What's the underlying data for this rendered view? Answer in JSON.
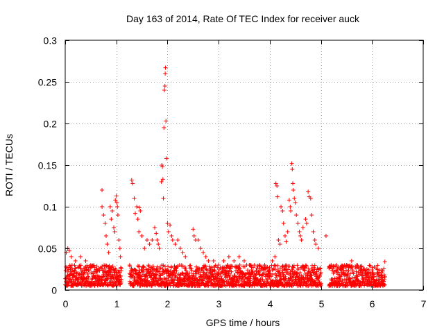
{
  "chart_data": {
    "type": "scatter",
    "title": "Day 163 of 2014, Rate Of TEC Index for receiver auck",
    "xlabel": "GPS time / hours",
    "ylabel": "ROTI / TECUs",
    "xlim": [
      0,
      7
    ],
    "ylim": [
      0,
      0.3
    ],
    "xticks": [
      0,
      1,
      2,
      3,
      4,
      5,
      6,
      7
    ],
    "yticks": [
      0,
      0.05,
      0.1,
      0.15,
      0.2,
      0.25,
      0.3
    ],
    "xtick_labels": [
      "0",
      "1",
      "2",
      "3",
      "4",
      "5",
      "6",
      "7"
    ],
    "ytick_labels": [
      "0",
      "0.05",
      "0.1",
      "0.15",
      "0.2",
      "0.25",
      "0.3"
    ],
    "grid": true,
    "marker": "plus",
    "color": "#ff0000",
    "series": [
      {
        "name": "ROTI",
        "baseline_x_range": [
          0,
          6.25
        ],
        "baseline_gaps": [
          [
            1.1,
            1.25
          ],
          [
            5.0,
            5.15
          ]
        ],
        "baseline_y_range": [
          0.005,
          0.03
        ],
        "points": [
          [
            0.02,
            0.045
          ],
          [
            0.05,
            0.05
          ],
          [
            0.08,
            0.047
          ],
          [
            0.12,
            0.04
          ],
          [
            0.2,
            0.035
          ],
          [
            0.3,
            0.04
          ],
          [
            0.4,
            0.035
          ],
          [
            0.5,
            0.03
          ],
          [
            0.72,
            0.12
          ],
          [
            0.72,
            0.1
          ],
          [
            0.75,
            0.09
          ],
          [
            0.78,
            0.08
          ],
          [
            0.8,
            0.065
          ],
          [
            0.82,
            0.055
          ],
          [
            0.85,
            0.045
          ],
          [
            0.88,
            0.1
          ],
          [
            0.9,
            0.085
          ],
          [
            0.92,
            0.095
          ],
          [
            0.95,
            0.075
          ],
          [
            0.97,
            0.07
          ],
          [
            0.98,
            0.108
          ],
          [
            1.0,
            0.113
          ],
          [
            1.01,
            0.105
          ],
          [
            1.02,
            0.1
          ],
          [
            1.03,
            0.09
          ],
          [
            1.05,
            0.06
          ],
          [
            1.07,
            0.05
          ],
          [
            1.08,
            0.04
          ],
          [
            1.3,
            0.132
          ],
          [
            1.32,
            0.128
          ],
          [
            1.35,
            0.11
          ],
          [
            1.37,
            0.092
          ],
          [
            1.4,
            0.1
          ],
          [
            1.42,
            0.085
          ],
          [
            1.44,
            0.07
          ],
          [
            1.45,
            0.099
          ],
          [
            1.47,
            0.095
          ],
          [
            1.5,
            0.065
          ],
          [
            1.55,
            0.05
          ],
          [
            1.6,
            0.06
          ],
          [
            1.65,
            0.055
          ],
          [
            1.7,
            0.06
          ],
          [
            1.75,
            0.075
          ],
          [
            1.78,
            0.068
          ],
          [
            1.8,
            0.06
          ],
          [
            1.82,
            0.055
          ],
          [
            1.84,
            0.05
          ],
          [
            1.88,
            0.13
          ],
          [
            1.89,
            0.15
          ],
          [
            1.9,
            0.148
          ],
          [
            1.91,
            0.133
          ],
          [
            1.92,
            0.11
          ],
          [
            1.93,
            0.195
          ],
          [
            1.94,
            0.24
          ],
          [
            1.95,
            0.245
          ],
          [
            1.955,
            0.26
          ],
          [
            1.96,
            0.267
          ],
          [
            1.97,
            0.203
          ],
          [
            1.98,
            0.158
          ],
          [
            2.0,
            0.08
          ],
          [
            2.02,
            0.07
          ],
          [
            2.05,
            0.078
          ],
          [
            2.08,
            0.065
          ],
          [
            2.1,
            0.06
          ],
          [
            2.15,
            0.055
          ],
          [
            2.2,
            0.06
          ],
          [
            2.25,
            0.05
          ],
          [
            2.3,
            0.045
          ],
          [
            2.35,
            0.04
          ],
          [
            2.5,
            0.073
          ],
          [
            2.52,
            0.065
          ],
          [
            2.55,
            0.06
          ],
          [
            2.6,
            0.06
          ],
          [
            2.65,
            0.05
          ],
          [
            2.7,
            0.045
          ],
          [
            2.75,
            0.04
          ],
          [
            2.8,
            0.035
          ],
          [
            2.9,
            0.035
          ],
          [
            3.0,
            0.03
          ],
          [
            3.1,
            0.035
          ],
          [
            3.2,
            0.04
          ],
          [
            3.3,
            0.035
          ],
          [
            3.4,
            0.04
          ],
          [
            3.5,
            0.035
          ],
          [
            3.6,
            0.03
          ],
          [
            3.7,
            0.03
          ],
          [
            3.8,
            0.03
          ],
          [
            3.9,
            0.03
          ],
          [
            4.05,
            0.035
          ],
          [
            4.1,
            0.04
          ],
          [
            4.12,
            0.128
          ],
          [
            4.14,
            0.125
          ],
          [
            4.15,
            0.112
          ],
          [
            4.17,
            0.06
          ],
          [
            4.2,
            0.055
          ],
          [
            4.22,
            0.1
          ],
          [
            4.25,
            0.095
          ],
          [
            4.27,
            0.08
          ],
          [
            4.3,
            0.065
          ],
          [
            4.32,
            0.058
          ],
          [
            4.35,
            0.07
          ],
          [
            4.38,
            0.108
          ],
          [
            4.4,
            0.1
          ],
          [
            4.41,
            0.095
          ],
          [
            4.43,
            0.152
          ],
          [
            4.44,
            0.145
          ],
          [
            4.45,
            0.128
          ],
          [
            4.46,
            0.12
          ],
          [
            4.48,
            0.11
          ],
          [
            4.5,
            0.105
          ],
          [
            4.52,
            0.09
          ],
          [
            4.55,
            0.08
          ],
          [
            4.58,
            0.07
          ],
          [
            4.6,
            0.065
          ],
          [
            4.62,
            0.06
          ],
          [
            4.65,
            0.075
          ],
          [
            4.7,
            0.085
          ],
          [
            4.72,
            0.08
          ],
          [
            4.75,
            0.118
          ],
          [
            4.77,
            0.112
          ],
          [
            4.8,
            0.11
          ],
          [
            4.82,
            0.09
          ],
          [
            4.85,
            0.07
          ],
          [
            4.88,
            0.06
          ],
          [
            4.9,
            0.055
          ],
          [
            4.95,
            0.05
          ],
          [
            5.1,
            0.065
          ],
          [
            5.2,
            0.03
          ],
          [
            5.3,
            0.03
          ],
          [
            5.4,
            0.025
          ],
          [
            5.5,
            0.03
          ],
          [
            5.6,
            0.035
          ],
          [
            5.7,
            0.03
          ],
          [
            5.8,
            0.025
          ],
          [
            5.9,
            0.025
          ],
          [
            6.0,
            0.02
          ],
          [
            6.1,
            0.02
          ],
          [
            6.25,
            0.034
          ]
        ]
      }
    ]
  }
}
